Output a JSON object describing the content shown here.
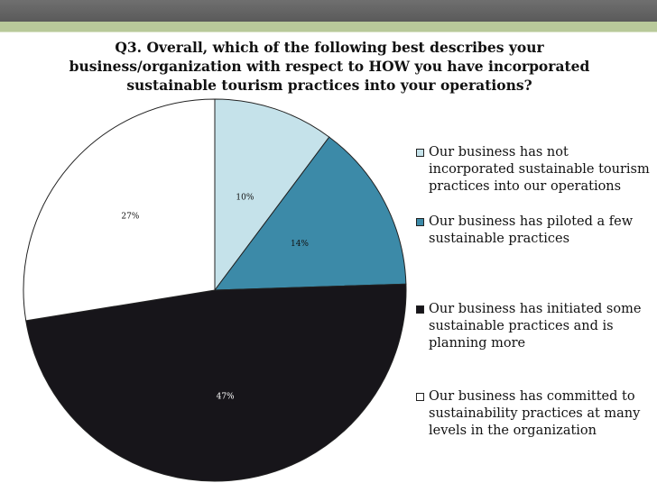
{
  "chart_data": {
    "type": "pie",
    "title": "Q3.  Overall, which of the following best describes your business/organization with respect to HOW you have incorporated sustainable tourism practices into your operations?",
    "title_lines": [
      "Q3.  Overall, which of the following best describes your",
      "business/organization with respect to HOW you have incorporated",
      "sustainable tourism practices into your operations?"
    ],
    "slices": [
      {
        "label": "Our business has not incorporated sustainable tourism practices into our operations",
        "value": 10,
        "display": "10%",
        "color": "#c5e2ea"
      },
      {
        "label": "Our business has piloted a few sustainable practices",
        "value": 14,
        "display": "14%",
        "color": "#3c8aa8"
      },
      {
        "label": "Our business has initiated some sustainable practices and is planning more",
        "value": 47,
        "display": "47%",
        "color": "#17151a"
      },
      {
        "label": "Our business has committed to sustainability practices at many levels in the organization",
        "value": 27,
        "display": "27%",
        "color": "#ffffff"
      }
    ],
    "legend_position": "right"
  },
  "theme": {
    "stroke": "#222222",
    "label_dark": "#111111",
    "label_light": "#ffffff"
  }
}
